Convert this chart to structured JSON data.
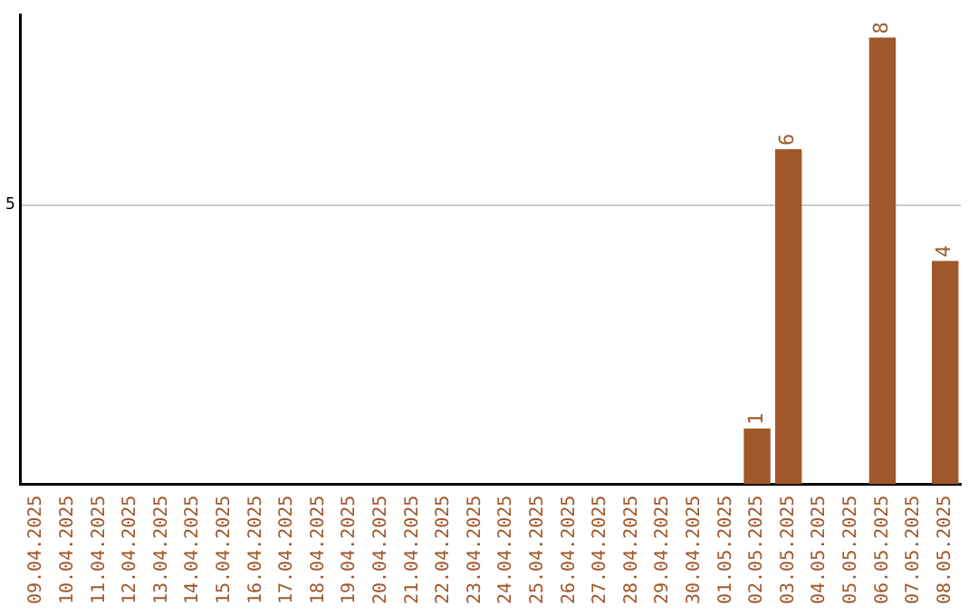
{
  "chart_data": {
    "type": "bar",
    "categories": [
      "09.04.2025",
      "10.04.2025",
      "11.04.2025",
      "12.04.2025",
      "13.04.2025",
      "14.04.2025",
      "15.04.2025",
      "16.04.2025",
      "17.04.2025",
      "18.04.2025",
      "19.04.2025",
      "20.04.2025",
      "21.04.2025",
      "22.04.2025",
      "23.04.2025",
      "24.04.2025",
      "25.04.2025",
      "26.04.2025",
      "27.04.2025",
      "28.04.2025",
      "29.04.2025",
      "30.04.2025",
      "01.05.2025",
      "02.05.2025",
      "03.05.2025",
      "04.05.2025",
      "05.05.2025",
      "06.05.2025",
      "07.05.2025",
      "08.05.2025"
    ],
    "values": [
      null,
      null,
      null,
      null,
      null,
      null,
      null,
      null,
      null,
      null,
      null,
      null,
      null,
      null,
      null,
      null,
      null,
      null,
      null,
      null,
      null,
      null,
      null,
      1,
      6,
      null,
      null,
      8,
      null,
      4
    ],
    "color": "#a0572a",
    "ylim": [
      0,
      8.4
    ],
    "yticks": [
      5
    ],
    "grid": "y",
    "data_labels": true,
    "legend": false
  }
}
